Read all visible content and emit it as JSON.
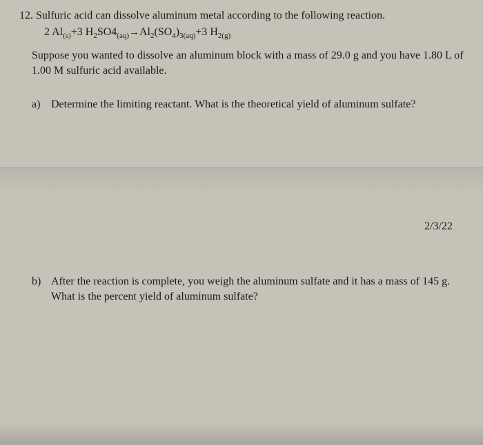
{
  "question": {
    "number": "12.",
    "intro": "Sulfuric acid can dissolve aluminum metal according to the following reaction.",
    "equation": {
      "coef1": "2",
      "sp1": "Al",
      "state1": "(s)",
      "plus1": "+3",
      "sp2": "H",
      "sp2sub": "2",
      "sp2b": "SO4",
      "state2": "(aq)",
      "arrow": "→",
      "sp3": "Al",
      "sp3sub": "2",
      "sp3b": "(SO",
      "sp3sub2": "4",
      "sp3c": ")",
      "sp3sub3": "3",
      "state3": "(aq)",
      "plus2": "+3",
      "sp4": "H",
      "sp4sub": "2",
      "state4": "(g)"
    },
    "context": "Suppose you wanted to dissolve an aluminum block with a mass of 29.0 g and you have 1.80 L of 1.00 M sulfuric acid available.",
    "partA": {
      "label": "a)",
      "text": "Determine the limiting reactant. What is the theoretical yield of aluminum sulfate?"
    },
    "partB": {
      "label": "b)",
      "text": "After the reaction is complete, you weigh the aluminum sulfate and it has a mass of 145 g. What is the percent yield of aluminum sulfate?"
    }
  },
  "date": "2/3/22"
}
